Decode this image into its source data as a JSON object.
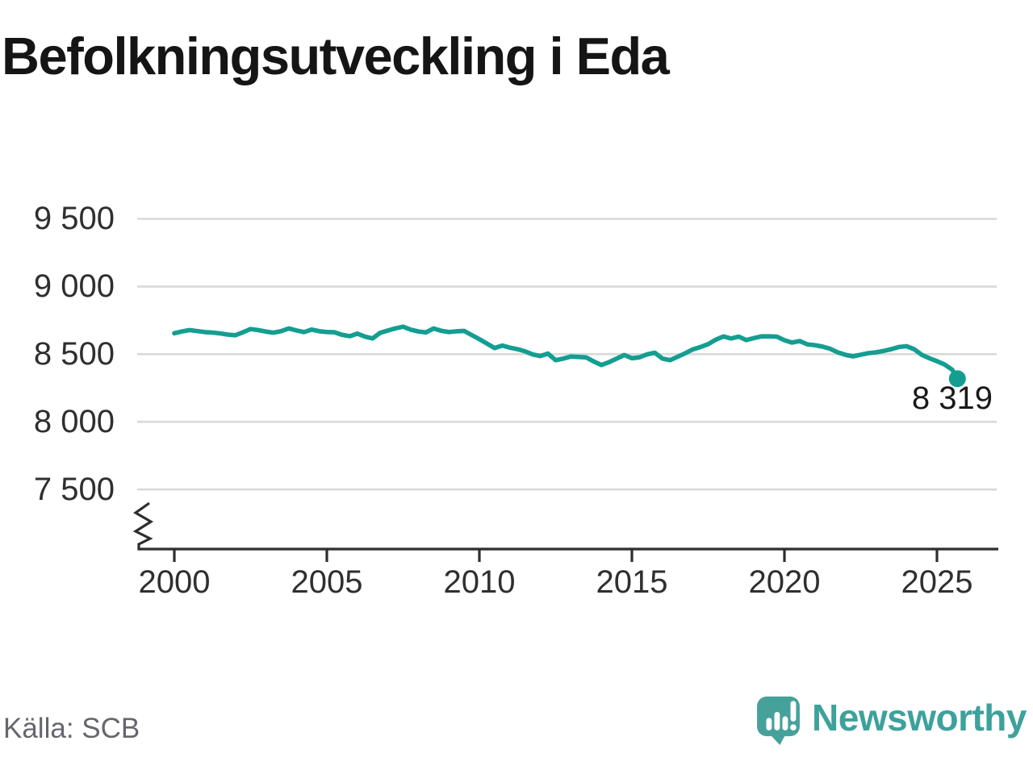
{
  "title": "Befolkningsutveckling i Eda",
  "source": "Källa: SCB",
  "branding": {
    "name": "Newsworthy",
    "icon": "newsworthy-speech-bubble-bar-chart-icon"
  },
  "annotation": {
    "last_value_label": "8 319"
  },
  "colors": {
    "line": "#149e91",
    "grid": "#d9d9d9",
    "axis": "#2e2e2e",
    "tick_text": "#2f2f2f",
    "title_text": "#151515",
    "source_text": "#66666f",
    "brand": "#3da19c",
    "background": "#ffffff"
  },
  "chart_data": {
    "type": "line",
    "title": "Befolkningsutveckling i Eda",
    "source": "Källa: SCB",
    "legend": "none",
    "grid": "horizontal",
    "x_axis": {
      "tick_values": [
        2000,
        2005,
        2010,
        2015,
        2020,
        2025
      ],
      "tick_labels": [
        "2000",
        "2005",
        "2010",
        "2015",
        "2020",
        "2025"
      ],
      "range": [
        2000,
        2027
      ]
    },
    "y_axis": {
      "tick_values": [
        9500,
        9000,
        8500,
        8000,
        7500
      ],
      "tick_labels": [
        "9 500",
        "9 000",
        "8 500",
        "8 000",
        "7 500"
      ],
      "range_shown": [
        7500,
        9500
      ],
      "axis_break": true
    },
    "end_point": {
      "x": 2025.67,
      "y": 8319,
      "label": "8 319"
    },
    "series": [
      {
        "name": "population",
        "color": "#149e91",
        "points": [
          [
            2000.0,
            8655
          ],
          [
            2000.25,
            8668
          ],
          [
            2000.5,
            8678
          ],
          [
            2000.75,
            8671
          ],
          [
            2001.0,
            8663
          ],
          [
            2001.25,
            8660
          ],
          [
            2001.5,
            8654
          ],
          [
            2001.75,
            8645
          ],
          [
            2002.0,
            8640
          ],
          [
            2002.25,
            8662
          ],
          [
            2002.5,
            8686
          ],
          [
            2002.75,
            8678
          ],
          [
            2003.0,
            8667
          ],
          [
            2003.25,
            8659
          ],
          [
            2003.5,
            8670
          ],
          [
            2003.75,
            8690
          ],
          [
            2004.0,
            8676
          ],
          [
            2004.25,
            8663
          ],
          [
            2004.5,
            8682
          ],
          [
            2004.75,
            8670
          ],
          [
            2005.0,
            8664
          ],
          [
            2005.25,
            8662
          ],
          [
            2005.5,
            8643
          ],
          [
            2005.75,
            8633
          ],
          [
            2006.0,
            8652
          ],
          [
            2006.25,
            8630
          ],
          [
            2006.5,
            8616
          ],
          [
            2006.75,
            8658
          ],
          [
            2007.0,
            8675
          ],
          [
            2007.25,
            8691
          ],
          [
            2007.5,
            8703
          ],
          [
            2007.75,
            8681
          ],
          [
            2008.0,
            8668
          ],
          [
            2008.25,
            8661
          ],
          [
            2008.5,
            8690
          ],
          [
            2008.75,
            8673
          ],
          [
            2009.0,
            8663
          ],
          [
            2009.25,
            8669
          ],
          [
            2009.5,
            8672
          ],
          [
            2009.75,
            8641
          ],
          [
            2010.0,
            8611
          ],
          [
            2010.25,
            8578
          ],
          [
            2010.5,
            8545
          ],
          [
            2010.75,
            8564
          ],
          [
            2011.0,
            8548
          ],
          [
            2011.25,
            8537
          ],
          [
            2011.5,
            8521
          ],
          [
            2011.75,
            8498
          ],
          [
            2012.0,
            8486
          ],
          [
            2012.25,
            8504
          ],
          [
            2012.5,
            8456
          ],
          [
            2012.75,
            8467
          ],
          [
            2013.0,
            8483
          ],
          [
            2013.25,
            8480
          ],
          [
            2013.5,
            8476
          ],
          [
            2013.75,
            8446
          ],
          [
            2014.0,
            8420
          ],
          [
            2014.25,
            8441
          ],
          [
            2014.5,
            8467
          ],
          [
            2014.75,
            8494
          ],
          [
            2015.0,
            8470
          ],
          [
            2015.25,
            8477
          ],
          [
            2015.5,
            8499
          ],
          [
            2015.75,
            8511
          ],
          [
            2016.0,
            8468
          ],
          [
            2016.25,
            8456
          ],
          [
            2016.5,
            8481
          ],
          [
            2016.75,
            8507
          ],
          [
            2017.0,
            8536
          ],
          [
            2017.25,
            8553
          ],
          [
            2017.5,
            8574
          ],
          [
            2017.75,
            8607
          ],
          [
            2018.0,
            8631
          ],
          [
            2018.25,
            8616
          ],
          [
            2018.5,
            8630
          ],
          [
            2018.75,
            8604
          ],
          [
            2019.0,
            8619
          ],
          [
            2019.25,
            8632
          ],
          [
            2019.5,
            8632
          ],
          [
            2019.75,
            8630
          ],
          [
            2020.0,
            8603
          ],
          [
            2020.25,
            8586
          ],
          [
            2020.5,
            8597
          ],
          [
            2020.75,
            8573
          ],
          [
            2021.0,
            8567
          ],
          [
            2021.25,
            8556
          ],
          [
            2021.5,
            8540
          ],
          [
            2021.75,
            8513
          ],
          [
            2022.0,
            8495
          ],
          [
            2022.25,
            8484
          ],
          [
            2022.5,
            8496
          ],
          [
            2022.75,
            8508
          ],
          [
            2023.0,
            8514
          ],
          [
            2023.25,
            8524
          ],
          [
            2023.5,
            8537
          ],
          [
            2023.75,
            8553
          ],
          [
            2024.0,
            8559
          ],
          [
            2024.25,
            8537
          ],
          [
            2024.5,
            8496
          ],
          [
            2024.75,
            8470
          ],
          [
            2025.0,
            8448
          ],
          [
            2025.25,
            8424
          ],
          [
            2025.5,
            8385
          ],
          [
            2025.67,
            8319
          ]
        ]
      }
    ]
  }
}
